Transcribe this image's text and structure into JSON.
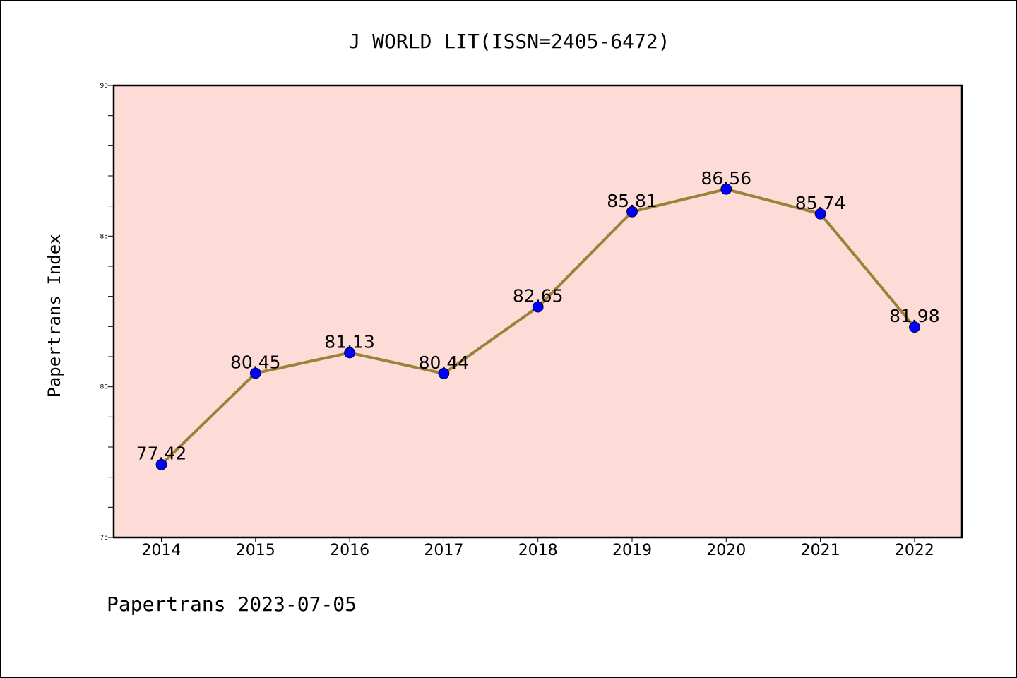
{
  "chart_data": {
    "type": "line",
    "title": "J WORLD LIT(ISSN=2405-6472)",
    "xlabel": "",
    "ylabel": "Papertrans Index",
    "categories": [
      "2014",
      "2015",
      "2016",
      "2017",
      "2018",
      "2019",
      "2020",
      "2021",
      "2022"
    ],
    "series": [
      {
        "values": [
          77.42,
          80.45,
          81.13,
          80.44,
          82.65,
          85.81,
          86.56,
          85.74,
          81.98
        ]
      }
    ],
    "data_labels": [
      "77.42",
      "80.45",
      "81.13",
      "80.44",
      "82.65",
      "85.81",
      "86.56",
      "85.74",
      "81.98"
    ],
    "ylim": [
      75,
      90
    ],
    "y_ticks": [
      75,
      80,
      85,
      90
    ],
    "y_tick_labels": [
      "75",
      "80",
      "85",
      "90"
    ],
    "grid": false,
    "legend": "none",
    "colors": {
      "plot_background": "#fddcd8",
      "line": "#9b8238",
      "marker": "#0000ff",
      "frame": "#000000"
    }
  },
  "footer": "Papertrans 2023-07-05"
}
